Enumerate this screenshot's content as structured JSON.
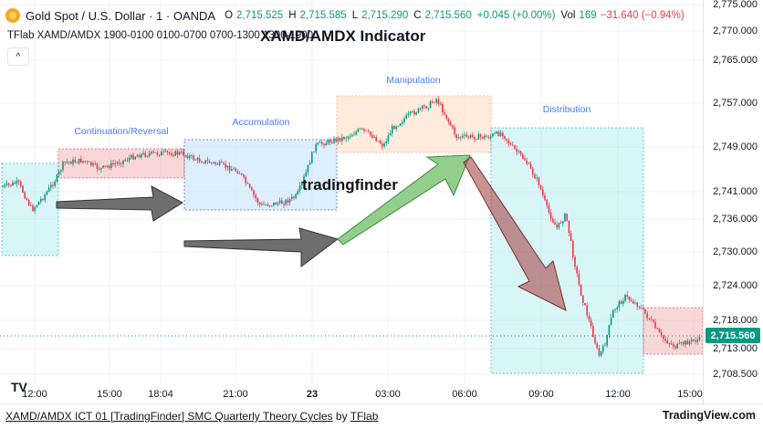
{
  "header": {
    "symbol_title": "Gold Spot / U.S. Dollar · 1 · OANDA",
    "ohlc": [
      {
        "key": "O",
        "value": "2,715.525"
      },
      {
        "key": "H",
        "value": "2,715.585"
      },
      {
        "key": "L",
        "value": "2,715.290"
      },
      {
        "key": "C",
        "value": "2,715.560"
      }
    ],
    "change": "+0.045 (+0.00%)",
    "vol_label": "Vol",
    "vol_value": "169",
    "vol_change": "−31.640 (−0.94%)"
  },
  "indicator": {
    "settings_line": "TFlab XAMD/AMDX 1900-0100 0100-0700 0700-1300 1300-1900",
    "title": "XAMD/AMDX Indicator",
    "collapse_glyph": "^"
  },
  "zones": [
    {
      "label": "Continuation/Reversal"
    },
    {
      "label": "Accumulation"
    },
    {
      "label": "Manipulation"
    },
    {
      "label": "Distribution"
    }
  ],
  "watermark": "tradingfinder",
  "price_axis": {
    "labels": [
      "2,775.000",
      "2,770.000",
      "2,765.000",
      "2,757.000",
      "2,749.000",
      "2,741.000",
      "2,736.000",
      "2,730.000",
      "2,724.000",
      "2,718.000",
      "2,713.000",
      "2,708.500"
    ],
    "current_price": "2,715.560"
  },
  "time_axis": {
    "labels": [
      "12:00",
      "15:00",
      "18:04",
      "21:00",
      "23",
      "03:00",
      "06:00",
      "09:00",
      "12:00",
      "15:00"
    ]
  },
  "footer": {
    "script_title": "XAMD/AMDX ICT 01 [TradingFinder] SMC Quarterly Theory Cycles",
    "by_text": "by",
    "author": "TFlab",
    "brand": "TradingView.com",
    "tv_logo": "TV"
  },
  "colors": {
    "up": "#089981",
    "down": "#f23645",
    "zone_teal": "#26c6da",
    "zone_red": "#ef9a9a",
    "zone_blue": "#bbdefb",
    "zone_peach": "#ffe0c7",
    "arrow_dark": "#555555",
    "arrow_green": "#6dbf67",
    "arrow_red": "#a94a4a"
  }
}
